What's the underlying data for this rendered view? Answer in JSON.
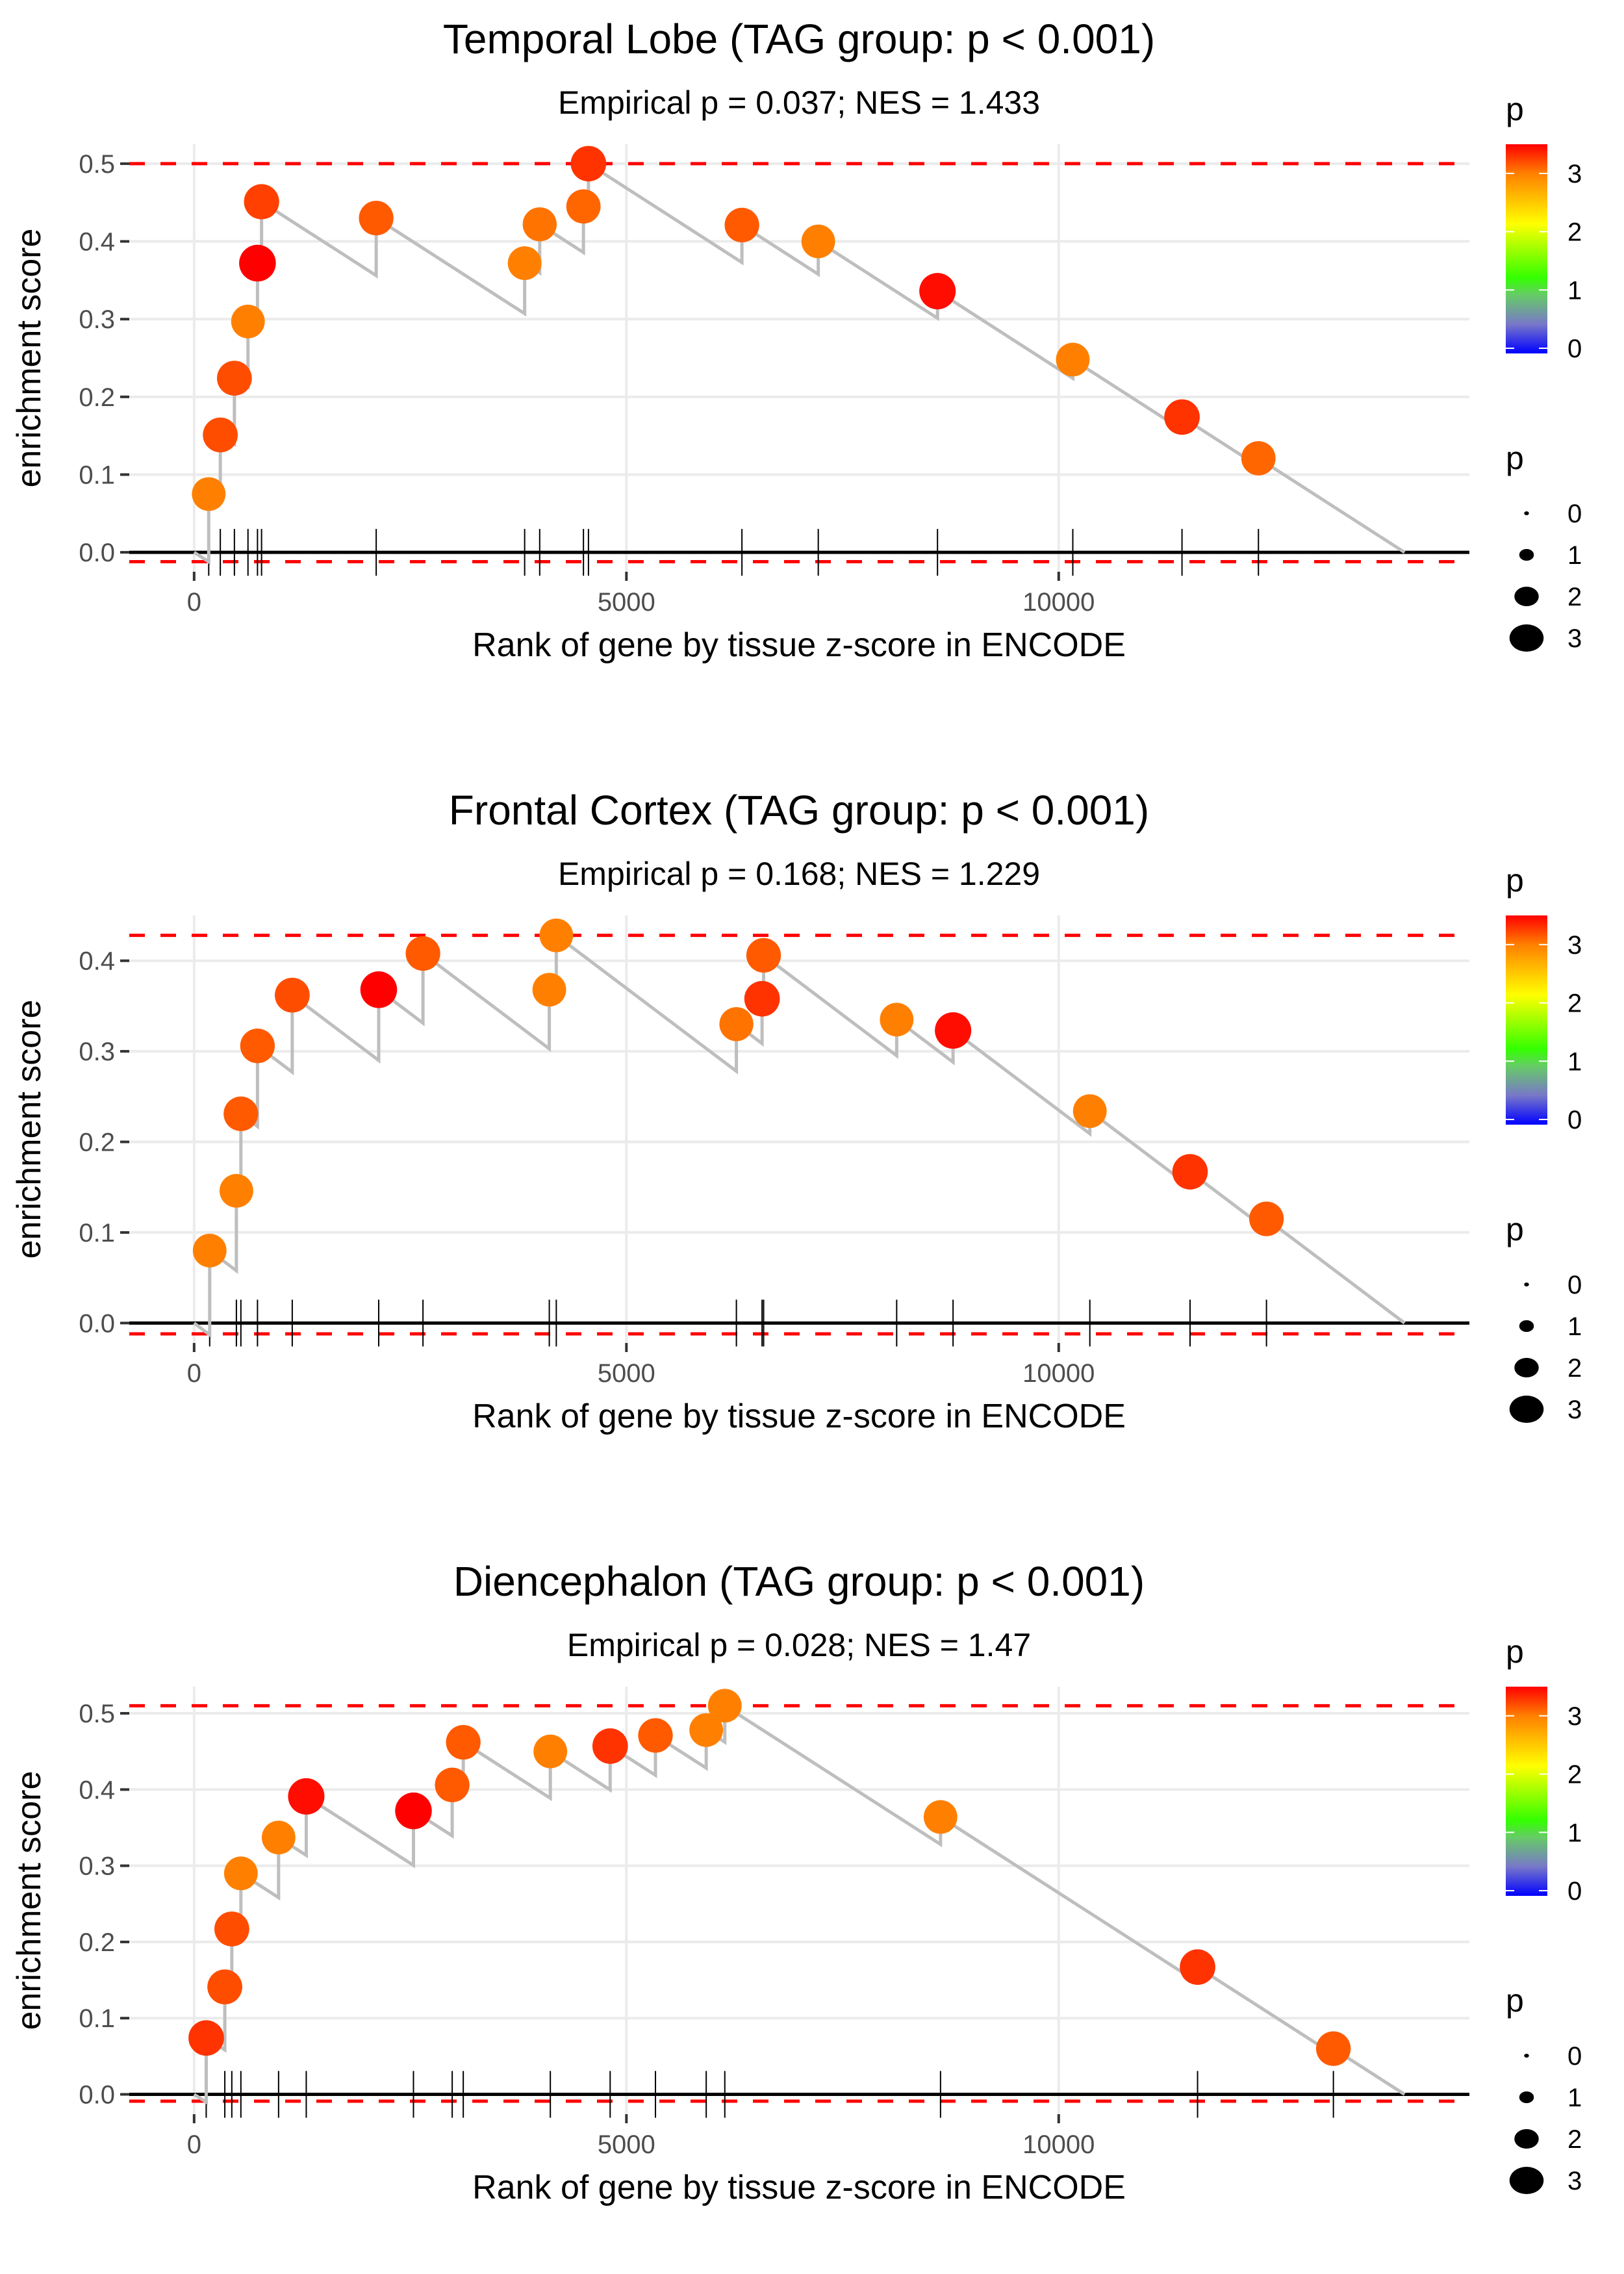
{
  "figure": {
    "description": "Three GSEA-style enrichment score plots for brain tissues"
  },
  "chart_data": [
    {
      "type": "line",
      "title": "Temporal Lobe (TAG group: p < 0.001)",
      "subtitle": "Empirical p = 0.037; NES = 1.433",
      "xlabel": "Rank of gene by tissue z-score in ENCODE",
      "ylabel": "enrichment score",
      "xlim": [
        -750,
        14750
      ],
      "ylim": [
        -0.025,
        0.525
      ],
      "x_ticks": [
        0,
        5000,
        10000
      ],
      "x_tick_labels": [
        "0",
        "5000",
        "10000"
      ],
      "y_ticks": [
        0,
        0.1,
        0.2,
        0.3,
        0.4,
        0.5
      ],
      "y_tick_labels": [
        "0.0",
        "0.1",
        "0.2",
        "0.3",
        "0.4",
        "0.5"
      ],
      "grid": true,
      "n_genes": 14000,
      "max_es": 0.5,
      "min_es": -0.012,
      "points": [
        {
          "rank": 169,
          "es": 0.075,
          "p": 3.0
        },
        {
          "rank": 303,
          "es": 0.151,
          "p": 3.2
        },
        {
          "rank": 466,
          "es": 0.224,
          "p": 3.2
        },
        {
          "rank": 623,
          "es": 0.297,
          "p": 3.0
        },
        {
          "rank": 733,
          "es": 0.372,
          "p": 3.5
        },
        {
          "rank": 780,
          "es": 0.451,
          "p": 3.25
        },
        {
          "rank": 2106,
          "es": 0.43,
          "p": 3.15
        },
        {
          "rank": 3823,
          "es": 0.372,
          "p": 3.0
        },
        {
          "rank": 3997,
          "es": 0.422,
          "p": 3.05
        },
        {
          "rank": 4503,
          "es": 0.445,
          "p": 3.1
        },
        {
          "rank": 4561,
          "es": 0.5,
          "p": 3.3
        },
        {
          "rank": 6336,
          "es": 0.421,
          "p": 3.15
        },
        {
          "rank": 7219,
          "es": 0.4,
          "p": 3.0
        },
        {
          "rank": 8598,
          "es": 0.336,
          "p": 3.45
        },
        {
          "rank": 10163,
          "es": 0.248,
          "p": 3.0
        },
        {
          "rank": 11426,
          "es": 0.174,
          "p": 3.3
        },
        {
          "rank": 12310,
          "es": 0.121,
          "p": 3.1
        }
      ]
    },
    {
      "type": "line",
      "title": "Frontal Cortex (TAG group: p < 0.001)",
      "subtitle": "Empirical p = 0.168; NES = 1.229",
      "xlabel": "Rank of gene by tissue z-score in ENCODE",
      "ylabel": "enrichment score",
      "xlim": [
        -750,
        14750
      ],
      "ylim": [
        -0.022,
        0.45
      ],
      "x_ticks": [
        0,
        5000,
        10000
      ],
      "x_tick_labels": [
        "0",
        "5000",
        "10000"
      ],
      "y_ticks": [
        0,
        0.1,
        0.2,
        0.3,
        0.4
      ],
      "y_tick_labels": [
        "0.0",
        "0.1",
        "0.2",
        "0.3",
        "0.4"
      ],
      "grid": true,
      "n_genes": 14000,
      "max_es": 0.428,
      "min_es": -0.012,
      "points": [
        {
          "rank": 180,
          "es": 0.08,
          "p": 3.0
        },
        {
          "rank": 489,
          "es": 0.146,
          "p": 3.0
        },
        {
          "rank": 541,
          "es": 0.231,
          "p": 3.15
        },
        {
          "rank": 733,
          "es": 0.306,
          "p": 3.15
        },
        {
          "rank": 1135,
          "es": 0.362,
          "p": 3.2
        },
        {
          "rank": 2135,
          "es": 0.368,
          "p": 3.5
        },
        {
          "rank": 2647,
          "es": 0.408,
          "p": 3.15
        },
        {
          "rank": 4108,
          "es": 0.368,
          "p": 3.0
        },
        {
          "rank": 4189,
          "es": 0.428,
          "p": 3.0
        },
        {
          "rank": 6272,
          "es": 0.33,
          "p": 3.05
        },
        {
          "rank": 6569,
          "es": 0.358,
          "p": 3.3
        },
        {
          "rank": 6587,
          "es": 0.406,
          "p": 3.15
        },
        {
          "rank": 8126,
          "es": 0.335,
          "p": 3.0
        },
        {
          "rank": 8778,
          "es": 0.323,
          "p": 3.45
        },
        {
          "rank": 10360,
          "es": 0.234,
          "p": 3.0
        },
        {
          "rank": 11519,
          "es": 0.167,
          "p": 3.3
        },
        {
          "rank": 12403,
          "es": 0.115,
          "p": 3.15
        }
      ]
    },
    {
      "type": "line",
      "title": "Diencephalon (TAG group: p < 0.001)",
      "subtitle": "Empirical p = 0.028; NES = 1.47",
      "xlabel": "Rank of gene by tissue z-score in ENCODE",
      "ylabel": "enrichment score",
      "xlim": [
        -750,
        14750
      ],
      "ylim": [
        -0.026,
        0.535
      ],
      "x_ticks": [
        0,
        5000,
        10000
      ],
      "x_tick_labels": [
        "0",
        "5000",
        "10000"
      ],
      "y_ticks": [
        0,
        0.1,
        0.2,
        0.3,
        0.4,
        0.5
      ],
      "y_tick_labels": [
        "0.0",
        "0.1",
        "0.2",
        "0.3",
        "0.4",
        "0.5"
      ],
      "grid": true,
      "n_genes": 14000,
      "max_es": 0.51,
      "min_es": -0.009,
      "points": [
        {
          "rank": 140,
          "es": 0.074,
          "p": 3.3
        },
        {
          "rank": 355,
          "es": 0.141,
          "p": 3.2
        },
        {
          "rank": 436,
          "es": 0.217,
          "p": 3.2
        },
        {
          "rank": 541,
          "es": 0.29,
          "p": 3.0
        },
        {
          "rank": 977,
          "es": 0.337,
          "p": 3.0
        },
        {
          "rank": 1297,
          "es": 0.391,
          "p": 3.45
        },
        {
          "rank": 2537,
          "es": 0.372,
          "p": 3.5
        },
        {
          "rank": 2985,
          "es": 0.406,
          "p": 3.15
        },
        {
          "rank": 3113,
          "es": 0.462,
          "p": 3.15
        },
        {
          "rank": 4120,
          "es": 0.45,
          "p": 3.0
        },
        {
          "rank": 4812,
          "es": 0.457,
          "p": 3.3
        },
        {
          "rank": 5336,
          "es": 0.471,
          "p": 3.15
        },
        {
          "rank": 5923,
          "es": 0.478,
          "p": 3.0
        },
        {
          "rank": 6138,
          "es": 0.51,
          "p": 3.0
        },
        {
          "rank": 8633,
          "es": 0.364,
          "p": 3.0
        },
        {
          "rank": 11606,
          "es": 0.167,
          "p": 3.3
        },
        {
          "rank": 13177,
          "es": 0.06,
          "p": 3.15
        }
      ]
    }
  ],
  "legend": {
    "color_title": "p",
    "color_ticks": [
      "0",
      "1",
      "2",
      "3"
    ],
    "color_range": [
      0,
      3.5
    ],
    "size_title": "p",
    "size_ticks": [
      "0",
      "1",
      "2",
      "3"
    ],
    "placement": "right"
  },
  "colors": {
    "line": "#bebebe",
    "threshold": "#ff0000",
    "grid": "#ebebeb",
    "baseline": "#000000"
  }
}
